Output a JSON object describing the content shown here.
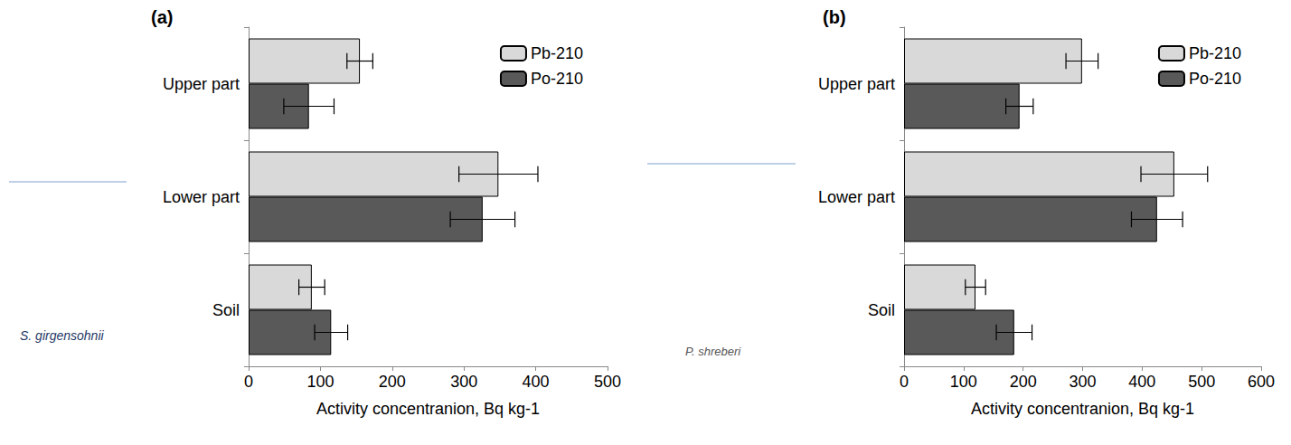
{
  "chart_data": [
    {
      "type": "bar",
      "title": "(a)",
      "annotations": [
        "S. girgensohnii"
      ],
      "orientation": "horizontal",
      "categories": [
        "Upper part",
        "Lower part",
        "Soil"
      ],
      "series": [
        {
          "name": "Pb-210",
          "color": "#d9d9d9",
          "values": [
            155,
            348,
            88
          ],
          "errors": [
            18,
            55,
            18
          ]
        },
        {
          "name": "Po-210",
          "color": "#595959",
          "values": [
            84,
            326,
            115
          ],
          "errors": [
            35,
            45,
            23
          ]
        }
      ],
      "xlabel": "Activity concentranion, Bq kg-1",
      "xlim": [
        0,
        500
      ],
      "xticks": [
        0,
        100,
        200,
        300,
        400,
        500
      ],
      "grid": false,
      "legend": "upper right"
    },
    {
      "type": "bar",
      "title": "(b)",
      "annotations": [
        "P. shreberi"
      ],
      "orientation": "horizontal",
      "categories": [
        "Upper part",
        "Lower part",
        "Soil"
      ],
      "series": [
        {
          "name": "Pb-210",
          "color": "#d9d9d9",
          "values": [
            299,
            454,
            120
          ],
          "errors": [
            27,
            56,
            17
          ]
        },
        {
          "name": "Po-210",
          "color": "#595959",
          "values": [
            194,
            425,
            185
          ],
          "errors": [
            23,
            43,
            30
          ]
        }
      ],
      "xlabel": "Activity concentranion, Bq kg-1",
      "xlim": [
        0,
        600
      ],
      "xticks": [
        0,
        100,
        200,
        300,
        400,
        500,
        600
      ],
      "grid": false,
      "legend": "upper right"
    }
  ]
}
